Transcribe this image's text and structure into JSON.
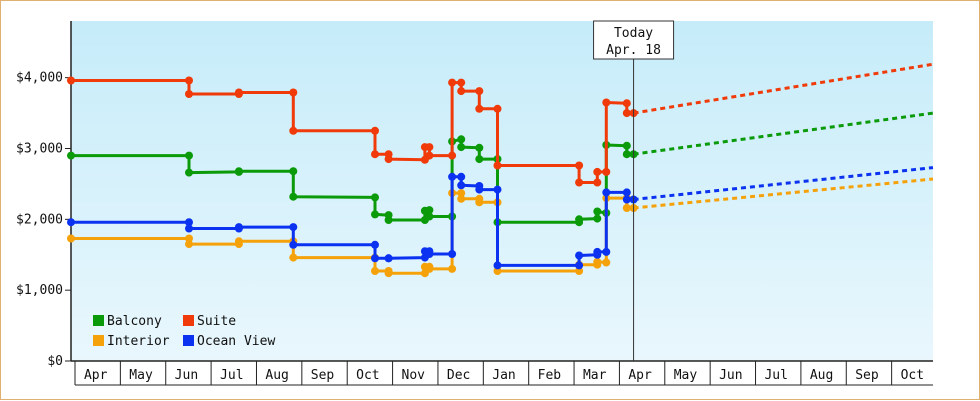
{
  "chart_data": {
    "type": "line",
    "ylim": [
      0,
      4800
    ],
    "y_ticks": [
      "$0",
      "$1,000",
      "$2,000",
      "$3,000",
      "$4,000"
    ],
    "y_tick_values": [
      0,
      1000,
      2000,
      3000,
      4000
    ],
    "months": [
      "Apr",
      "May",
      "Jun",
      "Jul",
      "Aug",
      "Sep",
      "Oct",
      "Nov",
      "Dec",
      "Jan",
      "Feb",
      "Mar",
      "Apr",
      "May",
      "Jun",
      "Jul",
      "Aug",
      "Sep",
      "Oct"
    ],
    "x_range": [
      0,
      19
    ],
    "today": {
      "x": 12.4,
      "label_line1": "Today",
      "label_line2": "Apr. 18"
    },
    "grid": false,
    "legend_position": "bottom-left",
    "series": [
      {
        "name": "Balcony",
        "color": "#0a9a0a",
        "points": [
          [
            0,
            2900
          ],
          [
            2.6,
            2900
          ],
          [
            2.6,
            2660
          ],
          [
            3.7,
            2670
          ],
          [
            3.7,
            2680
          ],
          [
            4.9,
            2680
          ],
          [
            4.9,
            2320
          ],
          [
            6.7,
            2310
          ],
          [
            6.7,
            2070
          ],
          [
            7.0,
            2060
          ],
          [
            7.0,
            1990
          ],
          [
            7.8,
            1990
          ],
          [
            7.8,
            2120
          ],
          [
            7.9,
            2130
          ],
          [
            7.9,
            2040
          ],
          [
            8.4,
            2040
          ],
          [
            8.4,
            3100
          ],
          [
            8.6,
            3130
          ],
          [
            8.6,
            3020
          ],
          [
            9.0,
            3010
          ],
          [
            9.0,
            2850
          ],
          [
            9.4,
            2850
          ],
          [
            9.4,
            1960
          ],
          [
            11.2,
            1960
          ],
          [
            11.2,
            2000
          ],
          [
            11.6,
            2010
          ],
          [
            11.6,
            2110
          ],
          [
            11.8,
            2090
          ],
          [
            11.8,
            3050
          ],
          [
            12.25,
            3040
          ],
          [
            12.25,
            2920
          ],
          [
            12.4,
            2920
          ]
        ],
        "projection": [
          [
            12.4,
            2920
          ],
          [
            19,
            3500
          ]
        ]
      },
      {
        "name": "Suite",
        "color": "#f03a0a",
        "points": [
          [
            0,
            3960
          ],
          [
            2.6,
            3960
          ],
          [
            2.6,
            3770
          ],
          [
            3.7,
            3770
          ],
          [
            3.7,
            3790
          ],
          [
            4.9,
            3790
          ],
          [
            4.9,
            3250
          ],
          [
            6.7,
            3250
          ],
          [
            6.7,
            2920
          ],
          [
            7.0,
            2920
          ],
          [
            7.0,
            2850
          ],
          [
            7.8,
            2840
          ],
          [
            7.8,
            3020
          ],
          [
            7.9,
            3020
          ],
          [
            7.9,
            2900
          ],
          [
            8.4,
            2900
          ],
          [
            8.4,
            3930
          ],
          [
            8.6,
            3930
          ],
          [
            8.6,
            3810
          ],
          [
            9.0,
            3810
          ],
          [
            9.0,
            3560
          ],
          [
            9.4,
            3560
          ],
          [
            9.4,
            2760
          ],
          [
            11.2,
            2760
          ],
          [
            11.2,
            2520
          ],
          [
            11.6,
            2520
          ],
          [
            11.6,
            2670
          ],
          [
            11.8,
            2670
          ],
          [
            11.8,
            3650
          ],
          [
            12.25,
            3640
          ],
          [
            12.25,
            3500
          ],
          [
            12.4,
            3500
          ]
        ],
        "projection": [
          [
            12.4,
            3500
          ],
          [
            19,
            4190
          ]
        ]
      },
      {
        "name": "Interior",
        "color": "#f5a20a",
        "points": [
          [
            0,
            1730
          ],
          [
            2.6,
            1730
          ],
          [
            2.6,
            1650
          ],
          [
            3.7,
            1650
          ],
          [
            3.7,
            1690
          ],
          [
            4.9,
            1690
          ],
          [
            4.9,
            1460
          ],
          [
            6.7,
            1460
          ],
          [
            6.7,
            1270
          ],
          [
            7.0,
            1270
          ],
          [
            7.0,
            1240
          ],
          [
            7.8,
            1240
          ],
          [
            7.8,
            1330
          ],
          [
            7.9,
            1330
          ],
          [
            7.9,
            1300
          ],
          [
            8.4,
            1300
          ],
          [
            8.4,
            2370
          ],
          [
            8.6,
            2370
          ],
          [
            8.6,
            2290
          ],
          [
            9.0,
            2290
          ],
          [
            9.0,
            2240
          ],
          [
            9.4,
            2240
          ],
          [
            9.4,
            1270
          ],
          [
            11.2,
            1270
          ],
          [
            11.2,
            1360
          ],
          [
            11.6,
            1360
          ],
          [
            11.6,
            1400
          ],
          [
            11.8,
            1390
          ],
          [
            11.8,
            2300
          ],
          [
            12.25,
            2300
          ],
          [
            12.25,
            2160
          ],
          [
            12.4,
            2160
          ]
        ],
        "projection": [
          [
            12.4,
            2160
          ],
          [
            19,
            2570
          ]
        ]
      },
      {
        "name": "Ocean View",
        "color": "#0a32f0",
        "points": [
          [
            0,
            1960
          ],
          [
            2.6,
            1960
          ],
          [
            2.6,
            1870
          ],
          [
            3.7,
            1870
          ],
          [
            3.7,
            1890
          ],
          [
            4.9,
            1890
          ],
          [
            4.9,
            1640
          ],
          [
            6.7,
            1640
          ],
          [
            6.7,
            1450
          ],
          [
            7.0,
            1450
          ],
          [
            7.0,
            1450
          ],
          [
            7.8,
            1460
          ],
          [
            7.8,
            1550
          ],
          [
            7.9,
            1550
          ],
          [
            7.9,
            1510
          ],
          [
            8.4,
            1510
          ],
          [
            8.4,
            2600
          ],
          [
            8.6,
            2600
          ],
          [
            8.6,
            2480
          ],
          [
            9.0,
            2470
          ],
          [
            9.0,
            2420
          ],
          [
            9.4,
            2420
          ],
          [
            9.4,
            1350
          ],
          [
            11.2,
            1350
          ],
          [
            11.2,
            1490
          ],
          [
            11.6,
            1500
          ],
          [
            11.6,
            1540
          ],
          [
            11.8,
            1540
          ],
          [
            11.8,
            2380
          ],
          [
            12.25,
            2380
          ],
          [
            12.25,
            2280
          ],
          [
            12.4,
            2280
          ]
        ],
        "projection": [
          [
            12.4,
            2280
          ],
          [
            19,
            2730
          ]
        ]
      }
    ]
  }
}
